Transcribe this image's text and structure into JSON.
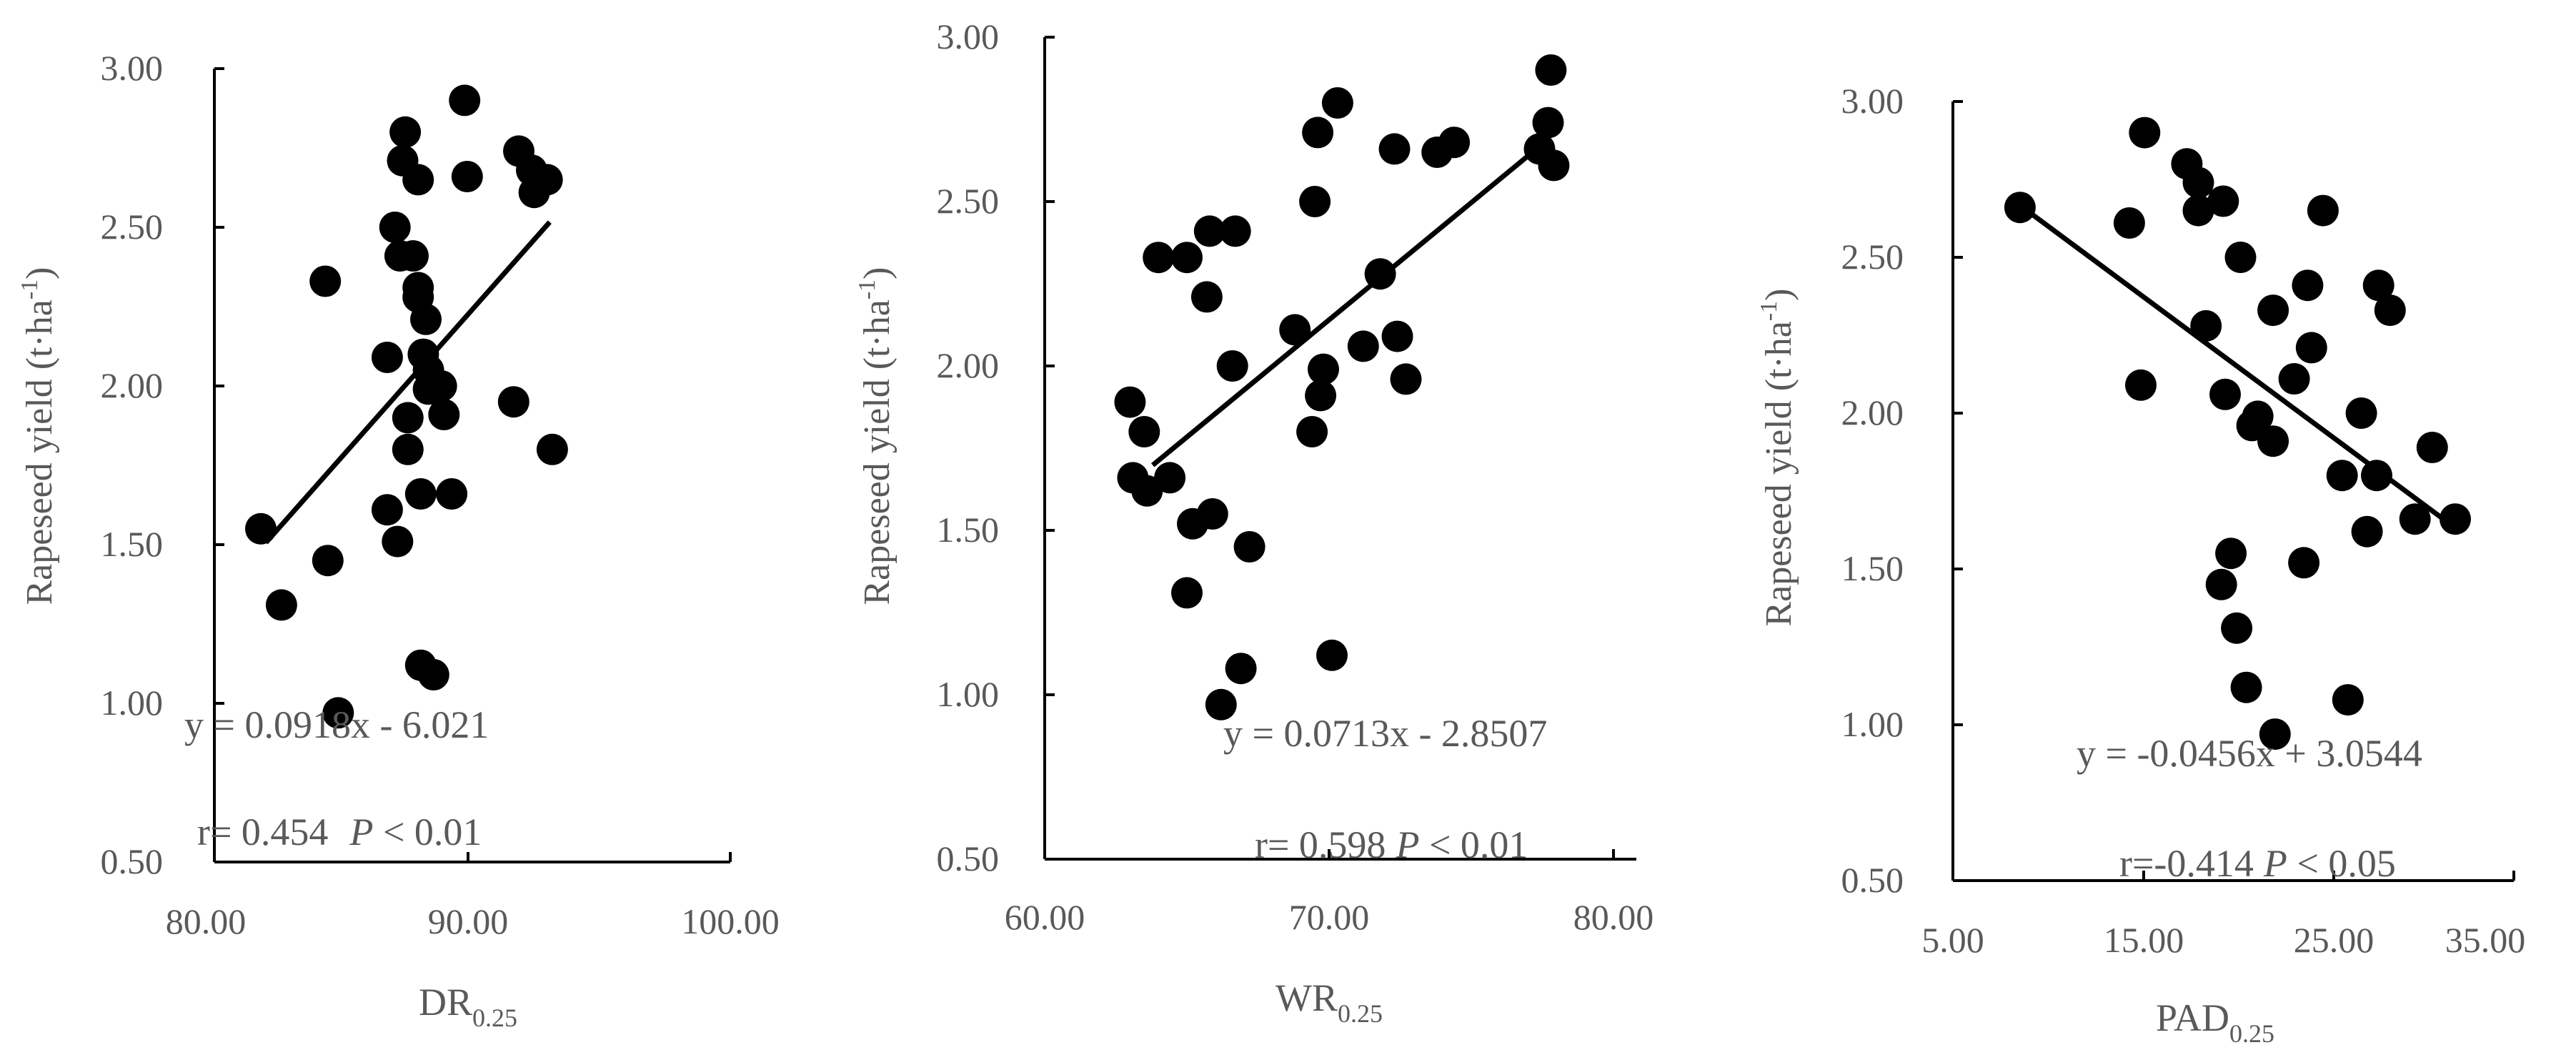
{
  "chart_data": [
    {
      "type": "scatter",
      "xlabel": "DR",
      "xlabel_sub": "0.25",
      "ylabel": "Rapeseed yield (t·ha",
      "ylabel_sup": "-1",
      "ylabel_end": ")",
      "xlim": [
        80,
        100
      ],
      "ylim": [
        0.5,
        3.0
      ],
      "x_ticks": [
        "80.00",
        "90.00",
        "100.00"
      ],
      "y_ticks": [
        "0.50",
        "1.00",
        "1.50",
        "2.00",
        "2.50",
        "3.00"
      ],
      "trendline": {
        "slope": 0.0918,
        "intercept": -6.021,
        "x_range": [
          82.0,
          93.0
        ]
      },
      "equation": "y = 0.0918x - 6.021",
      "r_label": "r= 0.454",
      "p_label": "P",
      "p_value": " < 0.01",
      "points": [
        [
          81.8,
          1.55
        ],
        [
          82.6,
          1.31
        ],
        [
          84.3,
          2.33
        ],
        [
          84.4,
          1.45
        ],
        [
          84.8,
          0.97
        ],
        [
          86.7,
          2.09
        ],
        [
          86.7,
          1.61
        ],
        [
          87.0,
          2.5
        ],
        [
          87.1,
          1.51
        ],
        [
          87.2,
          2.41
        ],
        [
          87.3,
          2.71
        ],
        [
          87.4,
          2.8
        ],
        [
          87.5,
          1.8
        ],
        [
          87.5,
          1.9
        ],
        [
          87.7,
          2.41
        ],
        [
          87.9,
          2.65
        ],
        [
          87.9,
          2.31
        ],
        [
          87.9,
          2.28
        ],
        [
          88.0,
          1.66
        ],
        [
          88.0,
          1.12
        ],
        [
          88.1,
          2.1
        ],
        [
          88.2,
          2.21
        ],
        [
          88.3,
          2.05
        ],
        [
          88.3,
          1.99
        ],
        [
          88.5,
          1.09
        ],
        [
          88.8,
          2.0
        ],
        [
          88.9,
          1.91
        ],
        [
          89.2,
          1.66
        ],
        [
          89.7,
          2.9
        ],
        [
          89.8,
          2.66
        ],
        [
          91.6,
          1.95
        ],
        [
          91.8,
          2.74
        ],
        [
          92.3,
          2.68
        ],
        [
          92.4,
          2.61
        ],
        [
          92.9,
          2.65
        ],
        [
          93.1,
          1.8
        ]
      ]
    },
    {
      "type": "scatter",
      "xlabel": "WR",
      "xlabel_sub": "0.25",
      "ylabel": "Rapeseed yield (t·ha",
      "ylabel_sup": "-1",
      "ylabel_end": ")",
      "xlim": [
        60,
        80
      ],
      "ylim": [
        0.5,
        3.0
      ],
      "x_ticks": [
        "60.00",
        "70.00",
        "80.00"
      ],
      "y_ticks": [
        "0.50",
        "1.00",
        "1.50",
        "2.00",
        "2.50",
        "3.00"
      ],
      "trendline": {
        "slope": 0.0713,
        "intercept": -2.8507,
        "x_range": [
          63.8,
          77.4
        ]
      },
      "equation": "y = 0.0713x - 2.8507",
      "r_label": "r= 0.598",
      "p_label": "P",
      "p_value": " < 0.01",
      "points": [
        [
          63.0,
          1.89
        ],
        [
          63.1,
          1.66
        ],
        [
          63.5,
          1.8
        ],
        [
          63.6,
          1.62
        ],
        [
          64.0,
          2.33
        ],
        [
          64.4,
          1.66
        ],
        [
          65.0,
          2.33
        ],
        [
          65.0,
          1.31
        ],
        [
          65.2,
          1.52
        ],
        [
          65.7,
          2.21
        ],
        [
          65.8,
          2.41
        ],
        [
          65.9,
          1.55
        ],
        [
          66.2,
          0.97
        ],
        [
          66.6,
          2.0
        ],
        [
          66.7,
          2.41
        ],
        [
          66.9,
          1.08
        ],
        [
          67.2,
          1.45
        ],
        [
          68.8,
          2.11
        ],
        [
          69.4,
          1.8
        ],
        [
          69.5,
          2.5
        ],
        [
          69.6,
          2.71
        ],
        [
          69.7,
          1.91
        ],
        [
          69.8,
          1.99
        ],
        [
          70.1,
          1.12
        ],
        [
          70.3,
          2.8
        ],
        [
          71.2,
          2.06
        ],
        [
          71.8,
          2.28
        ],
        [
          72.3,
          2.66
        ],
        [
          72.4,
          2.09
        ],
        [
          72.7,
          1.96
        ],
        [
          73.8,
          2.65
        ],
        [
          74.4,
          2.68
        ],
        [
          77.4,
          2.66
        ],
        [
          77.7,
          2.74
        ],
        [
          77.8,
          2.9
        ],
        [
          77.9,
          2.61
        ]
      ]
    },
    {
      "type": "scatter",
      "xlabel": "PAD",
      "xlabel_sub": "0.25",
      "ylabel": "Rapeseed yield (t·ha",
      "ylabel_sup": "-1",
      "ylabel_end": ")",
      "xlim": [
        5,
        35
      ],
      "ylim": [
        0.5,
        3.0
      ],
      "x_ticks": [
        "5.00",
        "15.00",
        "25.00",
        "35.00"
      ],
      "y_ticks": [
        "0.50",
        "1.00",
        "1.50",
        "2.00",
        "2.50",
        "3.00"
      ],
      "trendline": {
        "slope": -0.0456,
        "intercept": 3.0544,
        "x_range": [
          8.5,
          30.5
        ]
      },
      "equation": "y = -0.0456x + 3.0544",
      "r_label": "r=-0.414",
      "p_label": "P",
      "p_value": " < 0.05",
      "points": [
        [
          8.5,
          2.66
        ],
        [
          14.2,
          2.61
        ],
        [
          14.8,
          2.09
        ],
        [
          15.0,
          2.9
        ],
        [
          17.2,
          2.8
        ],
        [
          17.8,
          2.74
        ],
        [
          17.8,
          2.65
        ],
        [
          18.2,
          2.28
        ],
        [
          19.0,
          1.45
        ],
        [
          19.1,
          2.68
        ],
        [
          19.2,
          2.06
        ],
        [
          19.5,
          1.55
        ],
        [
          19.8,
          1.31
        ],
        [
          20.0,
          2.5
        ],
        [
          20.3,
          1.12
        ],
        [
          20.6,
          1.96
        ],
        [
          20.9,
          1.99
        ],
        [
          21.7,
          1.91
        ],
        [
          21.7,
          2.33
        ],
        [
          21.8,
          0.97
        ],
        [
          22.8,
          2.11
        ],
        [
          23.3,
          1.52
        ],
        [
          23.5,
          2.41
        ],
        [
          23.7,
          2.21
        ],
        [
          24.3,
          2.65
        ],
        [
          25.3,
          1.8
        ],
        [
          25.6,
          1.08
        ],
        [
          26.3,
          2.0
        ],
        [
          26.6,
          1.62
        ],
        [
          27.1,
          1.8
        ],
        [
          27.2,
          2.41
        ],
        [
          27.8,
          2.33
        ],
        [
          29.1,
          1.66
        ],
        [
          30.0,
          1.89
        ],
        [
          31.2,
          1.66
        ]
      ]
    }
  ]
}
